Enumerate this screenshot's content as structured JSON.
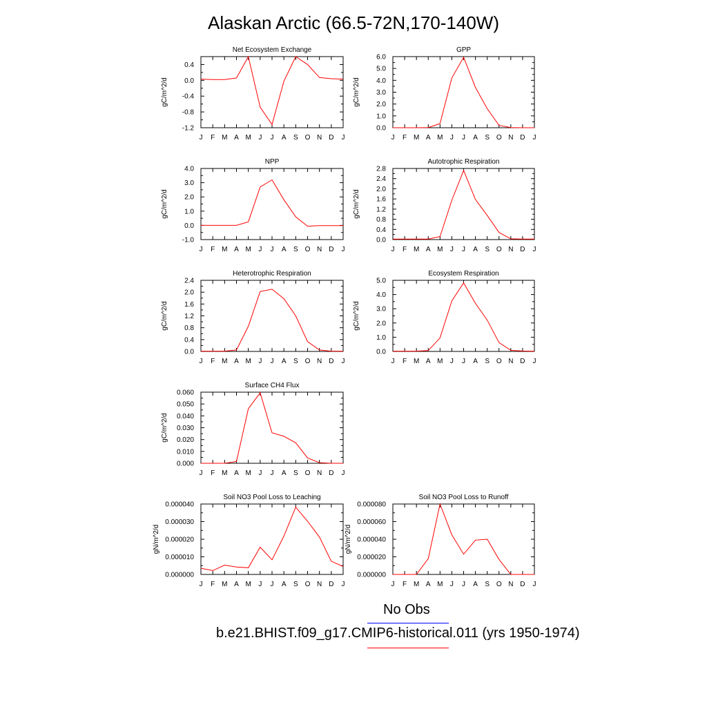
{
  "title": "Alaskan Arctic (66.5-72N,170-140W)",
  "colors": {
    "model": "#ff0000",
    "obs": "#0000ff"
  },
  "legend": {
    "obs_label": "No Obs",
    "model_label": "b.e21.BHIST.f09_g17.CMIP6-historical.011 (yrs 1950-1974)"
  },
  "chart_data": [
    {
      "type": "line",
      "title": "Net Ecosystem Exchange",
      "ylabel": "gC/m^2/d",
      "x": [
        "J",
        "F",
        "M",
        "A",
        "M",
        "J",
        "J",
        "A",
        "S",
        "O",
        "N",
        "D",
        "J"
      ],
      "ylim": [
        -1.2,
        0.6
      ],
      "yticks": [
        -1.2,
        -0.8,
        -0.4,
        0.0,
        0.4
      ],
      "yticklabels": [
        "-1.2",
        "-0.8",
        "-0.4",
        "0.0",
        "0.4"
      ],
      "series": [
        {
          "values": [
            0.03,
            0.02,
            0.02,
            0.06,
            0.6,
            -0.68,
            -1.12,
            -0.02,
            0.6,
            0.4,
            0.07,
            0.04,
            0.03
          ]
        }
      ]
    },
    {
      "type": "line",
      "title": "GPP",
      "ylabel": "gC/m^2/d",
      "x": [
        "J",
        "F",
        "M",
        "A",
        "M",
        "J",
        "J",
        "A",
        "S",
        "O",
        "N",
        "D",
        "J"
      ],
      "ylim": [
        0,
        6.0
      ],
      "yticks": [
        0,
        1,
        2,
        3,
        4,
        5,
        6
      ],
      "yticklabels": [
        "0.0",
        "1.0",
        "2.0",
        "3.0",
        "4.0",
        "5.0",
        "6.0"
      ],
      "series": [
        {
          "values": [
            0,
            0,
            0,
            0.02,
            0.35,
            4.2,
            5.95,
            3.4,
            1.6,
            0.2,
            0.02,
            0,
            0
          ]
        }
      ]
    },
    {
      "type": "line",
      "title": "NPP",
      "ylabel": "gC/m^2/d",
      "x": [
        "J",
        "F",
        "M",
        "A",
        "M",
        "J",
        "J",
        "A",
        "S",
        "O",
        "N",
        "D",
        "J"
      ],
      "ylim": [
        -1.0,
        4.0
      ],
      "yticks": [
        -1,
        0,
        1,
        2,
        3,
        4
      ],
      "yticklabels": [
        "-1.0",
        "0.0",
        "1.0",
        "2.0",
        "3.0",
        "4.0"
      ],
      "series": [
        {
          "values": [
            0,
            0,
            0,
            0,
            0.25,
            2.7,
            3.2,
            1.8,
            0.6,
            -0.06,
            -0.02,
            -0.02,
            -0.02
          ]
        }
      ]
    },
    {
      "type": "line",
      "title": "Autotrophic Respiration",
      "ylabel": "gC/m^2/d",
      "x": [
        "J",
        "F",
        "M",
        "A",
        "M",
        "J",
        "J",
        "A",
        "S",
        "O",
        "N",
        "D",
        "J"
      ],
      "ylim": [
        0,
        2.8
      ],
      "yticks": [
        0,
        0.4,
        0.8,
        1.2,
        1.6,
        2.0,
        2.4,
        2.8
      ],
      "yticklabels": [
        "0.0",
        "0.4",
        "0.8",
        "1.2",
        "1.6",
        "2.0",
        "2.4",
        "2.8"
      ],
      "series": [
        {
          "values": [
            0.02,
            0.02,
            0.02,
            0.02,
            0.12,
            1.55,
            2.72,
            1.58,
            0.95,
            0.28,
            0.03,
            0.02,
            0.02
          ]
        }
      ]
    },
    {
      "type": "line",
      "title": "Heterotrophic Respiration",
      "ylabel": "gC/m^2/d",
      "x": [
        "J",
        "F",
        "M",
        "A",
        "M",
        "J",
        "J",
        "A",
        "S",
        "O",
        "N",
        "D",
        "J"
      ],
      "ylim": [
        0,
        2.4
      ],
      "yticks": [
        0,
        0.4,
        0.8,
        1.2,
        1.6,
        2.0,
        2.4
      ],
      "yticklabels": [
        "0.0",
        "0.4",
        "0.8",
        "1.2",
        "1.6",
        "2.0",
        "2.4"
      ],
      "series": [
        {
          "values": [
            0.01,
            0.01,
            0.01,
            0.05,
            0.85,
            2.02,
            2.1,
            1.78,
            1.2,
            0.33,
            0.05,
            0.01,
            0.01
          ]
        }
      ]
    },
    {
      "type": "line",
      "title": "Ecosystem Respiration",
      "ylabel": "gC/m^2/d",
      "x": [
        "J",
        "F",
        "M",
        "A",
        "M",
        "J",
        "J",
        "A",
        "S",
        "O",
        "N",
        "D",
        "J"
      ],
      "ylim": [
        0,
        5.0
      ],
      "yticks": [
        0,
        1,
        2,
        3,
        4,
        5
      ],
      "yticklabels": [
        "0.0",
        "1.0",
        "2.0",
        "3.0",
        "4.0",
        "5.0"
      ],
      "series": [
        {
          "values": [
            0.02,
            0.02,
            0.02,
            0.06,
            0.95,
            3.55,
            4.82,
            3.38,
            2.2,
            0.62,
            0.08,
            0.03,
            0.02
          ]
        }
      ]
    },
    {
      "type": "line",
      "title": "Surface CH4 Flux",
      "ylabel": "gC/m^2/d",
      "x": [
        "J",
        "F",
        "M",
        "A",
        "M",
        "J",
        "J",
        "A",
        "S",
        "O",
        "N",
        "D",
        "J"
      ],
      "ylim": [
        0,
        0.06
      ],
      "yticks": [
        0,
        0.01,
        0.02,
        0.03,
        0.04,
        0.05,
        0.06
      ],
      "yticklabels": [
        "0.000",
        "0.010",
        "0.020",
        "0.030",
        "0.040",
        "0.050",
        "0.060"
      ],
      "series": [
        {
          "values": [
            0,
            0,
            0,
            0.0015,
            0.046,
            0.0595,
            0.0257,
            0.0228,
            0.0173,
            0.0045,
            0.0005,
            0,
            0
          ]
        }
      ]
    },
    {
      "type": "line",
      "title": "Soil NO3 Pool Loss to Leaching",
      "ylabel": "gN/m^2/d",
      "x": [
        "J",
        "F",
        "M",
        "A",
        "M",
        "J",
        "J",
        "A",
        "S",
        "O",
        "N",
        "D",
        "J"
      ],
      "ylim": [
        0,
        4e-05
      ],
      "yticks": [
        0,
        1e-05,
        2e-05,
        3e-05,
        4e-05
      ],
      "yticklabels": [
        "0.000000",
        "0.000010",
        "0.000020",
        "0.000030",
        "0.000040"
      ],
      "series": [
        {
          "values": [
            3.5e-06,
            2.2e-06,
            5.3e-06,
            4.2e-06,
            3.8e-06,
            1.55e-05,
            8.3e-06,
            2.18e-05,
            3.82e-05,
            3.02e-05,
            2.12e-05,
            7.5e-06,
            4.5e-06
          ]
        }
      ]
    },
    {
      "type": "line",
      "title": "Soil NO3 Pool Loss to Runoff",
      "ylabel": "gN/m^2/d",
      "x": [
        "J",
        "F",
        "M",
        "A",
        "M",
        "J",
        "J",
        "A",
        "S",
        "O",
        "N",
        "D",
        "J"
      ],
      "ylim": [
        0,
        8e-05
      ],
      "yticks": [
        0,
        2e-05,
        4e-05,
        6e-05,
        8e-05
      ],
      "yticklabels": [
        "0.000000",
        "0.000020",
        "0.000040",
        "0.000060",
        "0.000080"
      ],
      "series": [
        {
          "values": [
            0,
            0,
            0,
            1.8e-05,
            8e-05,
            4.5e-05,
            2.3e-05,
            3.9e-05,
            4e-05,
            1.7e-05,
            0,
            0,
            0
          ]
        }
      ]
    }
  ]
}
